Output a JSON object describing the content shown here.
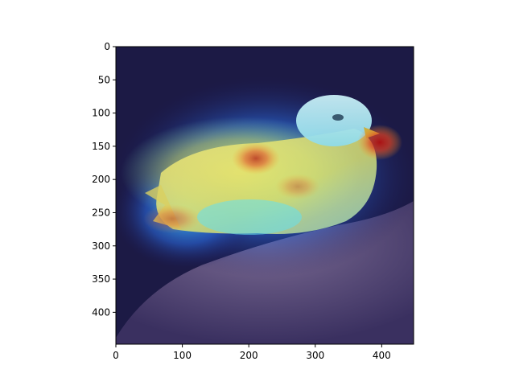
{
  "chart_data": {
    "type": "heatmap",
    "title": "",
    "xlabel": "",
    "ylabel": "",
    "xlim": [
      0,
      448
    ],
    "ylim": [
      448,
      0
    ],
    "x_ticks": [
      0,
      100,
      200,
      300,
      400
    ],
    "y_ticks": [
      0,
      50,
      100,
      150,
      200,
      250,
      300,
      350,
      400
    ],
    "x_tick_labels": [
      "0",
      "100",
      "200",
      "300",
      "400"
    ],
    "y_tick_labels": [
      "0",
      "50",
      "100",
      "150",
      "200",
      "250",
      "300",
      "350",
      "400"
    ],
    "colormap": "jet",
    "grid": false,
    "hotspots": [
      {
        "x": 400,
        "y": 143,
        "value": 1.0
      },
      {
        "x": 210,
        "y": 190,
        "value": 0.8
      },
      {
        "x": 80,
        "y": 270,
        "value": 0.65
      },
      {
        "x": 280,
        "y": 220,
        "value": 0.6
      }
    ],
    "colors": {
      "background_image_dark": "#1c1a45",
      "rock": "#6a5a80",
      "bird_body": "#d8e070",
      "bird_head": "#a9e2ee",
      "heat_low": "#2a2ab0",
      "heat_mid": "#46d3ff",
      "heat_high": "#c81a1a"
    }
  }
}
